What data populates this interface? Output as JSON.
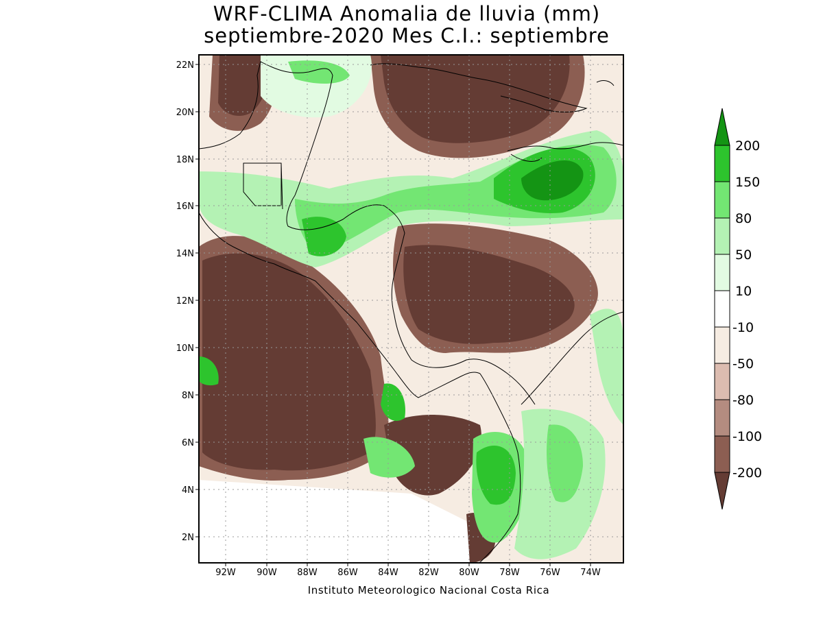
{
  "title_line1": "WRF-CLIMA Anomalia de lluvia (mm)",
  "title_line2": "septiembre-2020 Mes C.I.: septiembre",
  "footer": "Instituto Meteorologico Nacional Costa Rica",
  "map": {
    "lat_labels": [
      "22N",
      "20N",
      "18N",
      "16N",
      "14N",
      "12N",
      "10N",
      "8N",
      "6N",
      "4N",
      "2N"
    ],
    "lon_labels": [
      "92W",
      "90W",
      "88W",
      "86W",
      "84W",
      "82W",
      "80W",
      "78W",
      "76W",
      "74W"
    ],
    "lat_range": [
      1,
      22.4
    ],
    "lon_range": [
      -93.3,
      -72.5
    ]
  },
  "legend": {
    "levels": [
      "200",
      "150",
      "80",
      "50",
      "10",
      "-10",
      "-50",
      "-80",
      "-100",
      "-200"
    ],
    "colors": {
      "gt200": "#149414",
      "g150_200": "#2dc42d",
      "g80_150": "#73e673",
      "g50_80": "#b4f2b4",
      "g10_50": "#e2fbe2",
      "neutral": "#ffffff",
      "b10_50": "#f6ece2",
      "b50_80": "#dcbcb0",
      "b80_100": "#b48c80",
      "b100_200": "#8c5e52",
      "lt200": "#643c34"
    }
  }
}
